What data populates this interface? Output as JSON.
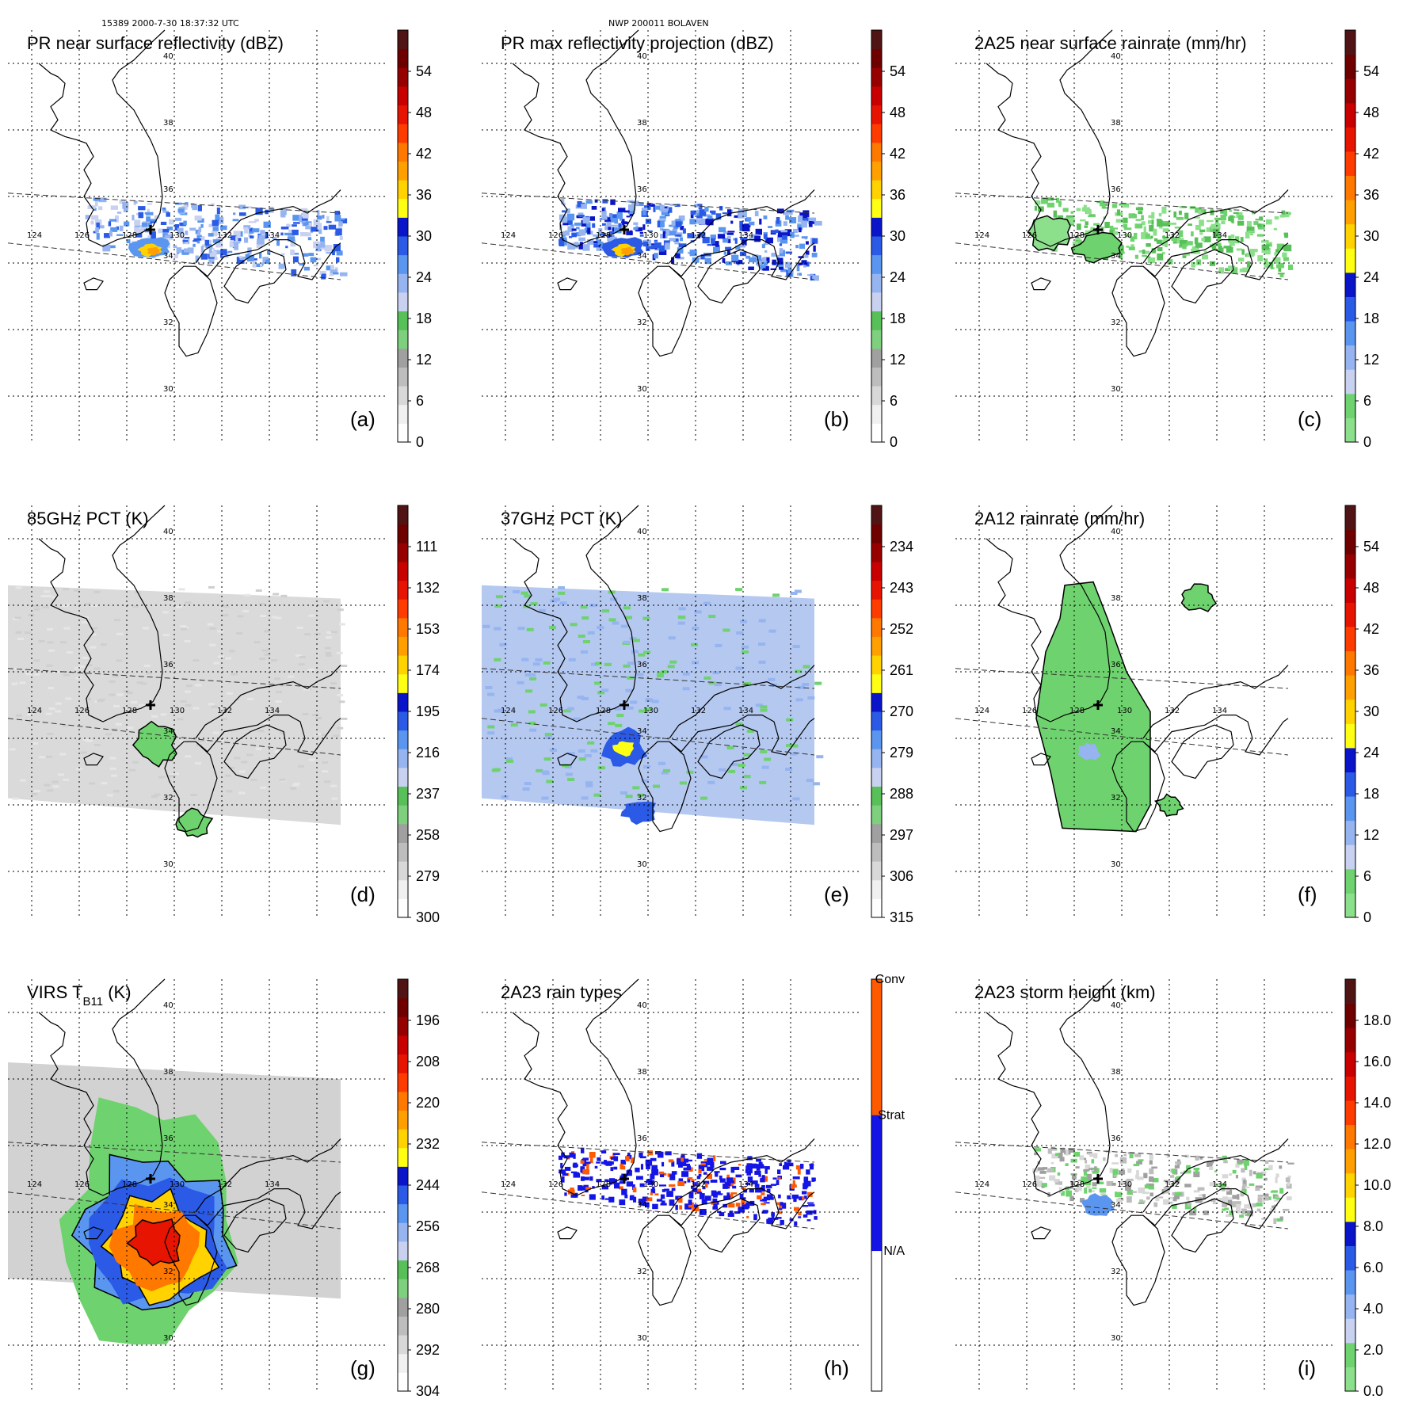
{
  "header": {
    "orbit_info": "15389 2000-7-30 18:37:32 UTC",
    "storm_info": "NWP 200011 BOLAVEN"
  },
  "lat_labels": [
    "40",
    "38",
    "36",
    "34",
    "32",
    "30"
  ],
  "lon_labels": [
    "124",
    "126",
    "128",
    "130",
    "132",
    "134"
  ],
  "panels": [
    {
      "id": "a",
      "title": "PR near surface reflectivity (dBZ)",
      "label": "(a)",
      "scale": "pr",
      "field": "swath_pr",
      "intensity": "medium",
      "ticks": [
        "54",
        "48",
        "42",
        "36",
        "30",
        "24",
        "18",
        "12",
        "6",
        "0"
      ]
    },
    {
      "id": "b",
      "title": "PR max reflectivity projection (dBZ)",
      "label": "(b)",
      "scale": "pr",
      "field": "swath_pr",
      "intensity": "high",
      "ticks": [
        "54",
        "48",
        "42",
        "36",
        "30",
        "24",
        "18",
        "12",
        "6",
        "0"
      ]
    },
    {
      "id": "c",
      "title": "2A25 near surface rainrate (mm/hr)",
      "label": "(c)",
      "scale": "rain",
      "field": "swath_pr",
      "intensity": "low",
      "ticks": [
        "54",
        "48",
        "42",
        "36",
        "30",
        "24",
        "18",
        "12",
        "6",
        "0"
      ]
    },
    {
      "id": "d",
      "title": "85GHz PCT (K)",
      "label": "(d)",
      "scale": "pct85",
      "field": "swath_gray",
      "ticks": [
        "111",
        "132",
        "153",
        "174",
        "195",
        "216",
        "237",
        "258",
        "279",
        "300"
      ]
    },
    {
      "id": "e",
      "title": "37GHz PCT (K)",
      "label": "(e)",
      "scale": "pct37",
      "field": "swath_blue",
      "ticks": [
        "234",
        "243",
        "252",
        "261",
        "270",
        "279",
        "288",
        "297",
        "306",
        "315"
      ]
    },
    {
      "id": "f",
      "title": "2A12 rainrate (mm/hr)",
      "label": "(f)",
      "scale": "rain",
      "field": "tmi_rain",
      "ticks": [
        "54",
        "48",
        "42",
        "36",
        "30",
        "24",
        "18",
        "12",
        "6",
        "0"
      ]
    },
    {
      "id": "g",
      "title": "VIRS T",
      "title_sub": "B11",
      "title_suffix": " (K)",
      "label": "(g)",
      "scale": "virs",
      "field": "virs",
      "ticks": [
        "196",
        "208",
        "220",
        "232",
        "244",
        "256",
        "268",
        "280",
        "292",
        "304"
      ]
    },
    {
      "id": "h",
      "title": "2A23 rain types",
      "label": "(h)",
      "scale": "types",
      "field": "types",
      "ticks": [
        "Conv",
        "Strat",
        "N/A"
      ]
    },
    {
      "id": "i",
      "title": "2A23 storm height (km)",
      "label": "(i)",
      "scale": "height",
      "field": "height",
      "ticks": [
        "18.0",
        "16.0",
        "14.0",
        "12.0",
        "10.0",
        "8.0",
        "6.0",
        "4.0",
        "2.0",
        "0.0"
      ]
    }
  ],
  "colors": {
    "pr": [
      "#ffffff",
      "#f0f0f0",
      "#d8d8d8",
      "#bdbdbd",
      "#a0a0a0",
      "#7ecf7e",
      "#58c058",
      "#c8d2f0",
      "#96b4f0",
      "#5a96f0",
      "#2a5ae6",
      "#0a14c8",
      "#ffff14",
      "#ffd200",
      "#ffa000",
      "#ff7800",
      "#ff3c00",
      "#e61400",
      "#c80000",
      "#960000",
      "#6e0000",
      "#501414"
    ],
    "rain": [
      "#8ce08c",
      "#6ed26e",
      "#c8d2f0",
      "#96b4f0",
      "#5a96f0",
      "#2a5ae6",
      "#0a14c8",
      "#ffff14",
      "#ffd200",
      "#ffa000",
      "#ff7800",
      "#ff3c00",
      "#e61400",
      "#c80000",
      "#960000",
      "#6e0000",
      "#501414"
    ],
    "pct85": [
      "#ffffff",
      "#f0f0f0",
      "#d8d8d8",
      "#bdbdbd",
      "#a0a0a0",
      "#7ecf7e",
      "#58c058",
      "#c8d2f0",
      "#96b4f0",
      "#5a96f0",
      "#2a5ae6",
      "#0a14c8",
      "#ffff14",
      "#ffd200",
      "#ffa000",
      "#ff7800",
      "#ff3c00",
      "#e61400",
      "#c80000",
      "#960000",
      "#6e0000",
      "#501414"
    ],
    "types": [
      "#ffffff",
      "#1414e6",
      "#ff5a00"
    ],
    "land_green": "#6ed26e",
    "swath_gray": "#dadada",
    "swath_blue": "#b4c8f0",
    "black": "#000000"
  }
}
